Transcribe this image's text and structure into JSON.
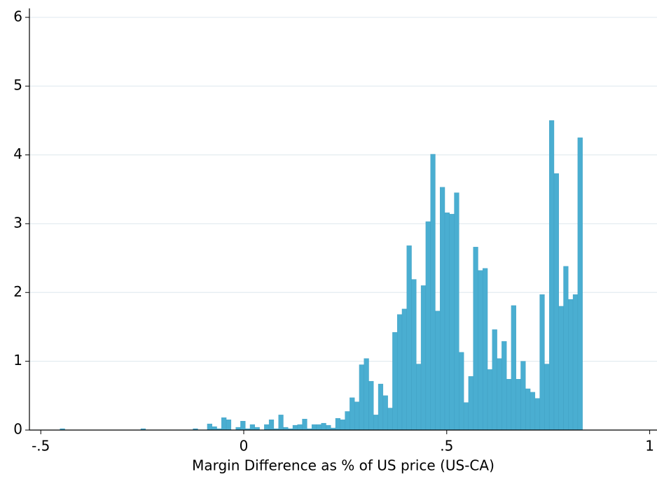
{
  "chart_data": {
    "type": "histogram",
    "x_label": "Margin Difference as % of US price (US-CA)",
    "color": "#4aaed1",
    "grid": true,
    "bins": [
      -0.4525,
      -0.4408,
      -0.4291,
      -0.4174,
      -0.4057,
      -0.394,
      -0.3823,
      -0.3706,
      -0.3589,
      -0.3472,
      -0.3355,
      -0.3238,
      -0.3121,
      -0.3004,
      -0.2887,
      -0.277,
      -0.2653,
      -0.2536,
      -0.2419,
      -0.2302,
      -0.2185,
      -0.2068,
      -0.1951,
      -0.1834,
      -0.1717,
      -0.16,
      -0.1483,
      -0.1366,
      -0.1249,
      -0.1132,
      -0.1015,
      -0.0898,
      -0.0781,
      -0.0664,
      -0.0547,
      -0.043,
      -0.0313,
      -0.0196,
      -0.0079,
      0.0038,
      0.0155,
      0.0272,
      0.0389,
      0.0506,
      0.0623,
      0.074,
      0.0857,
      0.0974,
      0.1091,
      0.1208,
      0.1325,
      0.1442,
      0.1559,
      0.1676,
      0.1793,
      0.191,
      0.2027,
      0.2144,
      0.2261,
      0.2378,
      0.2495,
      0.2612,
      0.2729,
      0.2846,
      0.2963,
      0.308,
      0.3197,
      0.3314,
      0.3431,
      0.3548,
      0.3665,
      0.3782,
      0.3899,
      0.4016,
      0.4133,
      0.425,
      0.4367,
      0.4484,
      0.4601,
      0.4718,
      0.4835,
      0.4952,
      0.5069,
      0.5186,
      0.5303,
      0.542,
      0.5537,
      0.5654,
      0.5771,
      0.5888,
      0.6005,
      0.6122,
      0.6239,
      0.6356,
      0.6473,
      0.659,
      0.6707,
      0.6824,
      0.6941,
      0.7058,
      0.7175,
      0.7292,
      0.7409,
      0.7526,
      0.7643,
      0.776,
      0.7877,
      0.7994,
      0.8111,
      0.8228,
      0.8345
    ],
    "values": [
      0.02,
      0,
      0,
      0,
      0,
      0,
      0,
      0,
      0,
      0,
      0,
      0,
      0,
      0,
      0,
      0,
      0,
      0.02,
      0,
      0,
      0,
      0,
      0,
      0,
      0,
      0,
      0,
      0,
      0.02,
      0,
      0,
      0.09,
      0.05,
      0.02,
      0.18,
      0.15,
      0,
      0.04,
      0.13,
      0.02,
      0.08,
      0.04,
      0,
      0.08,
      0.15,
      0.02,
      0.22,
      0.04,
      0.02,
      0.07,
      0.08,
      0.16,
      0.02,
      0.08,
      0.08,
      0.1,
      0.07,
      0.03,
      0.17,
      0.15,
      0.27,
      0.47,
      0.41,
      0.95,
      1.04,
      0.71,
      0.22,
      0.67,
      0.5,
      0.32,
      1.42,
      1.68,
      1.76,
      2.68,
      2.19,
      0.96,
      2.1,
      3.03,
      4.01,
      1.73,
      3.53,
      3.16,
      3.14,
      3.45,
      1.13,
      0.4,
      0.78,
      2.66,
      2.32,
      2.35,
      0.88,
      1.46,
      1.04,
      1.29,
      0.74,
      1.81,
      0.74,
      1.0,
      0.6,
      0.55,
      0.46,
      1.97,
      0.96,
      4.5,
      3.73,
      1.8,
      2.38,
      1.9,
      1.97,
      4.25
    ],
    "xlim": [
      -0.528,
      1.018
    ],
    "xticks": [
      {
        "value": -0.5,
        "label": "-.5"
      },
      0,
      {
        "value": 0.5,
        "label": ".5"
      },
      1
    ],
    "ylim": [
      0,
      6.13
    ],
    "yticks": [
      0,
      1,
      2,
      3,
      4,
      5,
      6
    ]
  }
}
